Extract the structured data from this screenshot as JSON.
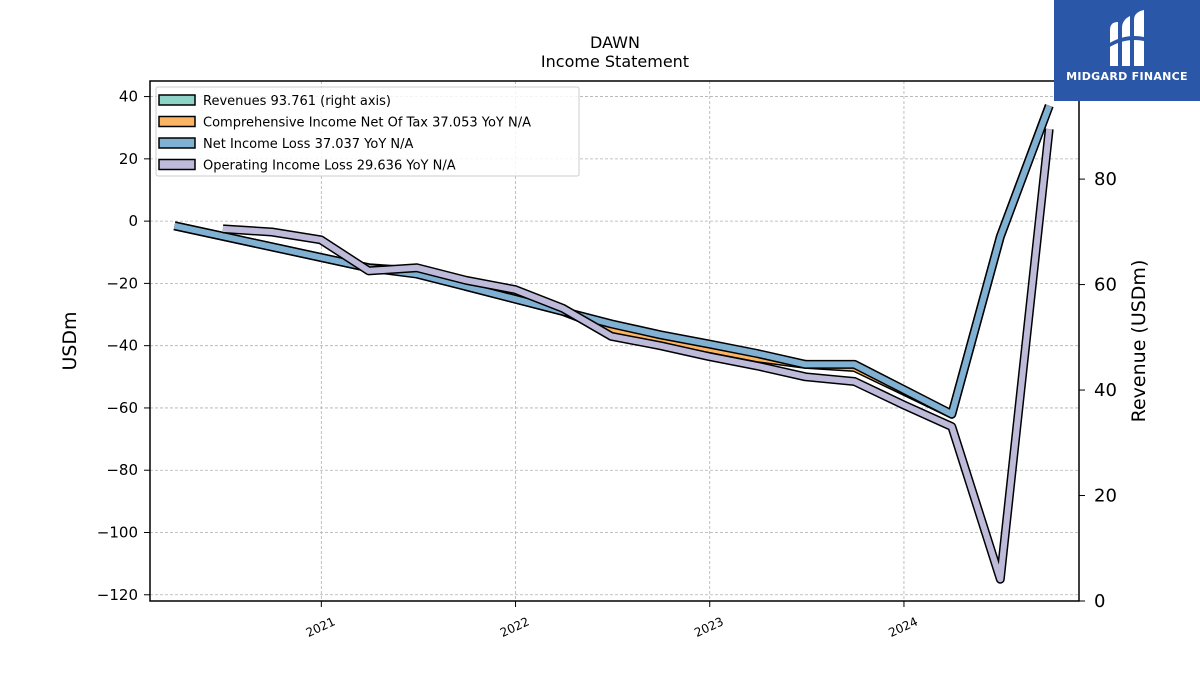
{
  "brand": {
    "name": "MIDGARD FINANCE",
    "icon": "midgard-logo-icon",
    "background_color": "#2b57a8"
  },
  "chart_data": {
    "type": "line",
    "title": "DAWN",
    "subtitle": "Income Statement",
    "ylabel": "USDm",
    "ylabel_right": "Revenue (USDm)",
    "ylim": [
      -122,
      45
    ],
    "ylim_right": [
      0,
      98.6
    ],
    "xlim": [
      "2020-02-14",
      "2024-11-25"
    ],
    "yticks": [
      40,
      20,
      0,
      -20,
      -40,
      -60,
      -80,
      -100,
      -120
    ],
    "ytick_labels": [
      "40",
      "20",
      "0",
      "−20",
      "−40",
      "−60",
      "−80",
      "−100",
      "−120"
    ],
    "yticks_right": [
      0,
      20,
      40,
      60,
      80
    ],
    "ytick_labels_right": [
      "0",
      "20",
      "40",
      "60",
      "80"
    ],
    "xticks": [
      "2021-01-01",
      "2022-01-01",
      "2023-01-01",
      "2024-01-01"
    ],
    "xtick_labels": [
      "2021",
      "2022",
      "2023",
      "2024"
    ],
    "grid": true,
    "legend_position": "top-left",
    "series": [
      {
        "name": "Revenues  93.761 (right axis)",
        "color": "#8dd3c7",
        "axis": "right",
        "x": [],
        "values": []
      },
      {
        "name": "Comprehensive Income Net Of Tax  37.053 YoY N/A",
        "color": "#fdb462",
        "axis": "left",
        "x": [
          "2020-03-31",
          "2021-03-31",
          "2021-06-30",
          "2021-09-30",
          "2022-03-31",
          "2022-06-30",
          "2022-09-30",
          "2022-12-31",
          "2023-03-31",
          "2023-06-30",
          "2023-09-30",
          "2024-03-31",
          "2024-06-30",
          "2024-09-30"
        ],
        "values": [
          -1.5,
          -15,
          -16,
          -21,
          -29,
          -35,
          -38,
          -41,
          -44,
          -46,
          -47,
          -62,
          -5,
          37.1
        ]
      },
      {
        "name": "Net Income Loss  37.037 YoY N/A",
        "color": "#80b1d3",
        "axis": "left",
        "x": [
          "2020-03-31",
          "2021-03-31",
          "2021-06-30",
          "2021-09-30",
          "2022-03-31",
          "2022-06-30",
          "2022-09-30",
          "2022-12-31",
          "2023-03-31",
          "2023-06-30",
          "2023-09-30",
          "2024-03-31",
          "2024-06-30",
          "2024-09-30"
        ],
        "values": [
          -1.5,
          -15,
          -17,
          -21,
          -29,
          -33,
          -36.5,
          -39.5,
          -42.5,
          -46,
          -46,
          -62,
          -5,
          37.0
        ]
      },
      {
        "name": "Operating Income Loss  29.636 YoY N/A",
        "color": "#bebada",
        "axis": "left",
        "x": [
          "2020-06-30",
          "2020-09-30",
          "2020-12-31",
          "2021-03-31",
          "2021-06-30",
          "2021-09-30",
          "2021-12-31",
          "2022-03-31",
          "2022-06-30",
          "2022-09-30",
          "2022-12-31",
          "2023-03-31",
          "2023-06-30",
          "2023-09-30",
          "2023-12-31",
          "2024-03-31",
          "2024-06-30",
          "2024-09-30"
        ],
        "values": [
          -2.5,
          -3.5,
          -6,
          -16,
          -15,
          -19,
          -22,
          -28,
          -37,
          -40,
          -43.5,
          -46.5,
          -50,
          -51.5,
          -59,
          -66,
          -115,
          29.6
        ]
      }
    ]
  }
}
